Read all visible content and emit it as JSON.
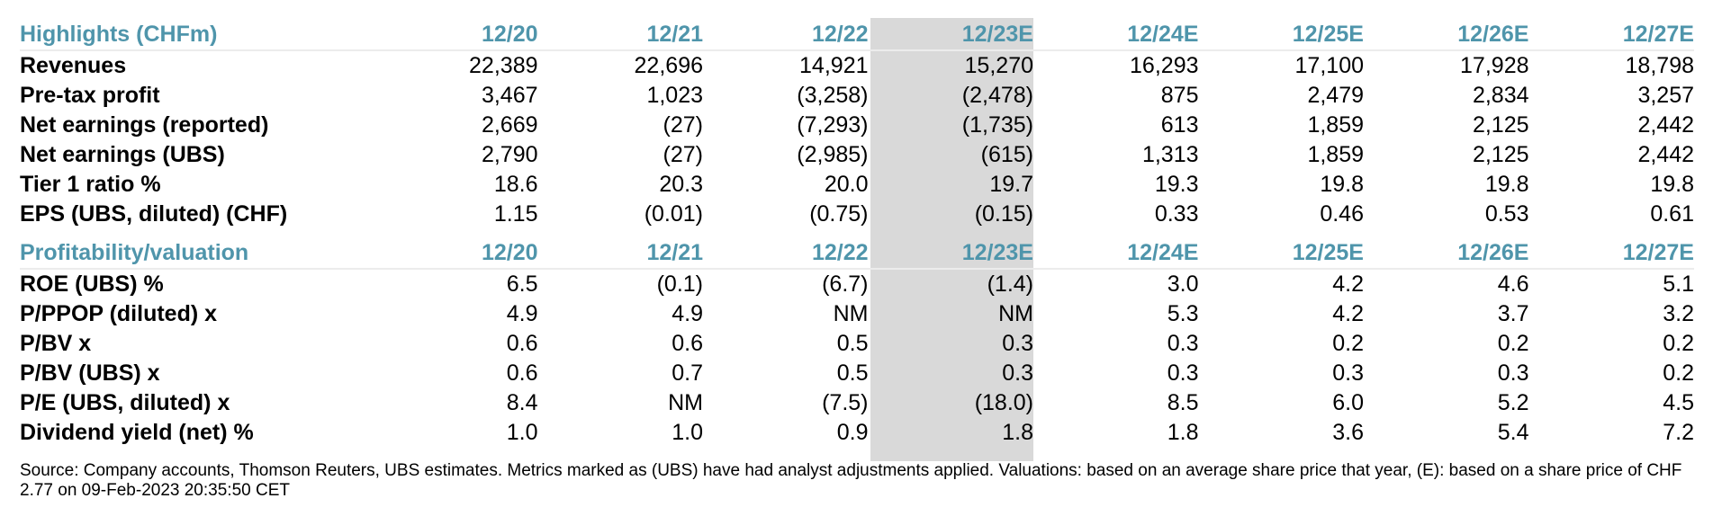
{
  "highlights": {
    "title": "Highlights (CHFm)",
    "columns": [
      "12/20",
      "12/21",
      "12/22",
      "12/23E",
      "12/24E",
      "12/25E",
      "12/26E",
      "12/27E"
    ],
    "rows": [
      {
        "label": "Revenues",
        "values": [
          "22,389",
          "22,696",
          "14,921",
          "15,270",
          "16,293",
          "17,100",
          "17,928",
          "18,798"
        ]
      },
      {
        "label": "Pre-tax profit",
        "values": [
          "3,467",
          "1,023",
          "(3,258)",
          "(2,478)",
          "875",
          "2,479",
          "2,834",
          "3,257"
        ]
      },
      {
        "label": "Net earnings (reported)",
        "values": [
          "2,669",
          "(27)",
          "(7,293)",
          "(1,735)",
          "613",
          "1,859",
          "2,125",
          "2,442"
        ]
      },
      {
        "label": "Net earnings (UBS)",
        "values": [
          "2,790",
          "(27)",
          "(2,985)",
          "(615)",
          "1,313",
          "1,859",
          "2,125",
          "2,442"
        ]
      },
      {
        "label": "Tier 1 ratio %",
        "values": [
          "18.6",
          "20.3",
          "20.0",
          "19.7",
          "19.3",
          "19.8",
          "19.8",
          "19.8"
        ]
      },
      {
        "label": "EPS (UBS, diluted) (CHF)",
        "values": [
          "1.15",
          "(0.01)",
          "(0.75)",
          "(0.15)",
          "0.33",
          "0.46",
          "0.53",
          "0.61"
        ]
      }
    ]
  },
  "profitability": {
    "title": "Profitability/valuation",
    "columns": [
      "12/20",
      "12/21",
      "12/22",
      "12/23E",
      "12/24E",
      "12/25E",
      "12/26E",
      "12/27E"
    ],
    "rows": [
      {
        "label": "ROE (UBS) %",
        "values": [
          "6.5",
          "(0.1)",
          "(6.7)",
          "(1.4)",
          "3.0",
          "4.2",
          "4.6",
          "5.1"
        ]
      },
      {
        "label": "P/PPOP (diluted) x",
        "values": [
          "4.9",
          "4.9",
          "NM",
          "NM",
          "5.3",
          "4.2",
          "3.7",
          "3.2"
        ]
      },
      {
        "label": "P/BV x",
        "values": [
          "0.6",
          "0.6",
          "0.5",
          "0.3",
          "0.3",
          "0.2",
          "0.2",
          "0.2"
        ]
      },
      {
        "label": "P/BV (UBS) x",
        "values": [
          "0.6",
          "0.7",
          "0.5",
          "0.3",
          "0.3",
          "0.3",
          "0.3",
          "0.2"
        ]
      },
      {
        "label": "P/E (UBS, diluted) x",
        "values": [
          "8.4",
          "NM",
          "(7.5)",
          "(18.0)",
          "8.5",
          "6.0",
          "5.2",
          "4.5"
        ]
      },
      {
        "label": "Dividend yield (net) %",
        "values": [
          "1.0",
          "1.0",
          "0.9",
          "1.8",
          "1.8",
          "3.6",
          "5.4",
          "7.2"
        ]
      }
    ]
  },
  "footnote": "Source: Company accounts, Thomson Reuters, UBS estimates. Metrics marked as (UBS) have had analyst adjustments applied. Valuations: based on an average share price that year, (E): based on a share price of CHF 2.77 on 09-Feb-2023 20:35:50 CET",
  "colors": {
    "header_text": "#4f95ab",
    "highlight_band": "#d9d9d9"
  }
}
